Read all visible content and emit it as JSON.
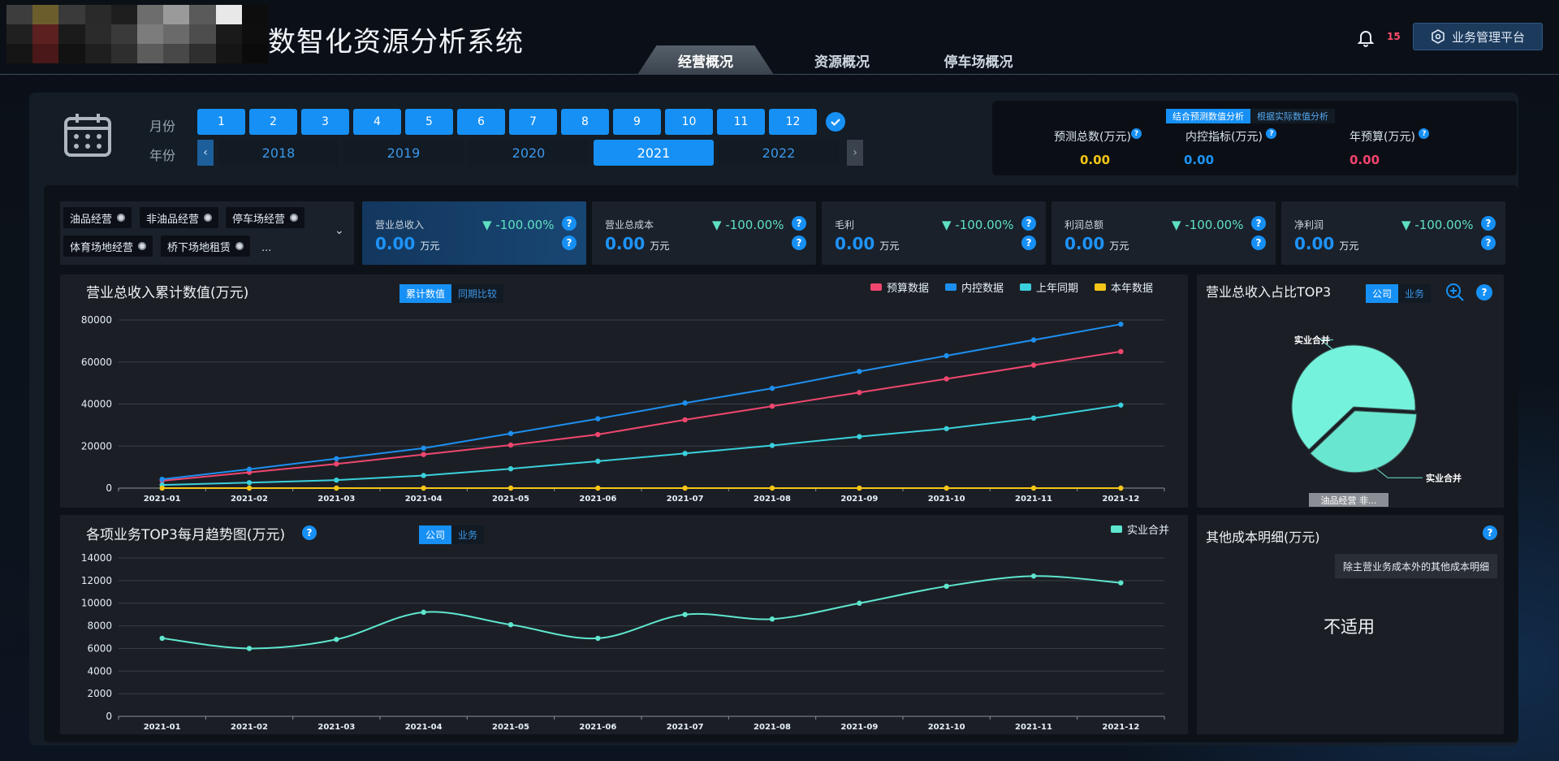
{
  "app": {
    "title": "数智化资源分析系统",
    "notification_count": "15",
    "platform_button": "业务管理平台"
  },
  "tabs": [
    {
      "label": "经营概况",
      "active": true
    },
    {
      "label": "资源概况",
      "active": false
    },
    {
      "label": "停车场概况",
      "active": false
    }
  ],
  "date": {
    "month_label": "月份",
    "year_label": "年份",
    "months": [
      "1",
      "2",
      "3",
      "4",
      "5",
      "6",
      "7",
      "8",
      "9",
      "10",
      "11",
      "12"
    ],
    "years": [
      "2018",
      "2019",
      "2020",
      "2021",
      "2022"
    ],
    "selected_year": "2021"
  },
  "forecast": {
    "toggle": [
      "结合预测数值分析",
      "根据实际数值分析"
    ],
    "items": [
      {
        "label": "预测总数(万元)",
        "value": "0.00",
        "color": "#f5c518"
      },
      {
        "label": "内控指标(万元)",
        "value": "0.00",
        "color": "#1e93f7"
      },
      {
        "label": "年预算(万元)",
        "value": "0.00",
        "color": "#f2426e"
      }
    ]
  },
  "filters": {
    "chips": [
      "油品经营",
      "非油品经营",
      "停车场经营",
      "体育场地经营",
      "桥下场地租赁"
    ],
    "more": "..."
  },
  "kpis": [
    {
      "name": "营业总收入",
      "value": "0.00",
      "unit": "万元",
      "delta": "-100.00%",
      "active": true
    },
    {
      "name": "营业总成本",
      "value": "0.00",
      "unit": "万元",
      "delta": "-100.00%",
      "active": false
    },
    {
      "name": "毛利",
      "value": "0.00",
      "unit": "万元",
      "delta": "-100.00%",
      "active": false
    },
    {
      "name": "利润总额",
      "value": "0.00",
      "unit": "万元",
      "delta": "-100.00%",
      "active": false
    },
    {
      "name": "净利润",
      "value": "0.00",
      "unit": "万元",
      "delta": "-100.00%",
      "active": false
    }
  ],
  "revenue_chart": {
    "title": "营业总收入累计数值(万元)",
    "toggle": [
      "累计数值",
      "同期比较"
    ]
  },
  "top3_pie": {
    "title": "营业总收入占比TOP3",
    "toggle": [
      "公司",
      "业务"
    ],
    "caption": "油品经营 非..."
  },
  "trend_chart": {
    "title": "各项业务TOP3每月趋势图(万元)",
    "toggle": [
      "公司",
      "业务"
    ]
  },
  "other_cost": {
    "title": "其他成本明细(万元)",
    "tooltip": "除主营业务成本外的其他成本明细",
    "not_applicable": "不适用"
  },
  "chart_data": [
    {
      "type": "line",
      "title": "营业总收入累计数值(万元)",
      "categories": [
        "2021-01",
        "2021-02",
        "2021-03",
        "2021-04",
        "2021-05",
        "2021-06",
        "2021-07",
        "2021-08",
        "2021-09",
        "2021-10",
        "2021-11",
        "2021-12"
      ],
      "ylim": [
        0,
        80000
      ],
      "yticks": [
        0,
        20000,
        40000,
        60000,
        80000
      ],
      "legend": "top-right",
      "grid": true,
      "series": [
        {
          "name": "预算数据",
          "color": "#f0466f",
          "values": [
            3500,
            7500,
            11500,
            16000,
            20500,
            25500,
            32500,
            39000,
            45500,
            52000,
            58500,
            65000
          ]
        },
        {
          "name": "内控数据",
          "color": "#1e8ff0",
          "values": [
            4200,
            9000,
            14000,
            19000,
            26000,
            33000,
            40500,
            47500,
            55500,
            63000,
            70500,
            78000
          ]
        },
        {
          "name": "上年同期",
          "color": "#3ad0dc",
          "values": [
            1500,
            2600,
            3800,
            6000,
            9200,
            12800,
            16500,
            20300,
            24500,
            28300,
            33300,
            39500
          ]
        },
        {
          "name": "本年数据",
          "color": "#f5c518",
          "values": [
            0,
            0,
            0,
            0,
            0,
            0,
            0,
            0,
            0,
            0,
            0,
            0
          ]
        }
      ]
    },
    {
      "type": "pie",
      "title": "营业总收入占比TOP3",
      "slices": [
        {
          "label": "实业合并",
          "value": 63,
          "color": "#74f2dc"
        },
        {
          "label": "实业合并",
          "value": 37,
          "color": "#69e6cf"
        }
      ]
    },
    {
      "type": "line",
      "title": "各项业务TOP3每月趋势图(万元)",
      "categories": [
        "2021-01",
        "2021-02",
        "2021-03",
        "2021-04",
        "2021-05",
        "2021-06",
        "2021-07",
        "2021-08",
        "2021-09",
        "2021-10",
        "2021-11",
        "2021-12"
      ],
      "ylim": [
        0,
        14000
      ],
      "yticks": [
        0,
        2000,
        4000,
        6000,
        8000,
        10000,
        12000,
        14000
      ],
      "legend": "top-right",
      "grid": true,
      "series": [
        {
          "name": "实业合并",
          "color": "#5fe6cf",
          "values": [
            6900,
            6000,
            6800,
            9200,
            8100,
            6900,
            9000,
            8600,
            10000,
            11500,
            12400,
            11800
          ]
        }
      ]
    }
  ]
}
